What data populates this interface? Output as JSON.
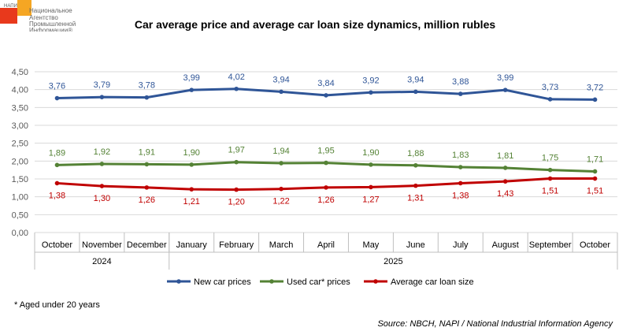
{
  "logo": {
    "badge": "НАПИ",
    "lines": [
      "Национальное",
      "Агентство",
      "Промышленной",
      "Информации®"
    ]
  },
  "chart_data": {
    "type": "line",
    "title": "Car average price and average car loan size dynamics, million rubles",
    "categories": [
      "October",
      "November",
      "December",
      "January",
      "February",
      "March",
      "April",
      "May",
      "June",
      "July",
      "August",
      "September",
      "October"
    ],
    "year_groups": [
      {
        "label": "2024",
        "count": 3
      },
      {
        "label": "2025",
        "count": 10
      }
    ],
    "ylim": [
      0,
      4.5
    ],
    "yticks": [
      "0,00",
      "0,50",
      "1,00",
      "1,50",
      "2,00",
      "2,50",
      "3,00",
      "3,50",
      "4,00",
      "4,50"
    ],
    "grid": true,
    "legend_position": "bottom",
    "series": [
      {
        "name": "New car prices",
        "color": "#2F5597",
        "label_pos": "above",
        "values": [
          3.76,
          3.79,
          3.78,
          3.99,
          4.02,
          3.94,
          3.84,
          3.92,
          3.94,
          3.88,
          3.99,
          3.73,
          3.72
        ]
      },
      {
        "name": "Used car* prices",
        "color": "#548235",
        "label_pos": "above",
        "values": [
          1.89,
          1.92,
          1.91,
          1.9,
          1.97,
          1.94,
          1.95,
          1.9,
          1.88,
          1.83,
          1.81,
          1.75,
          1.71
        ]
      },
      {
        "name": "Average car loan size",
        "color": "#C00000",
        "label_pos": "below",
        "values": [
          1.38,
          1.3,
          1.26,
          1.21,
          1.2,
          1.22,
          1.26,
          1.27,
          1.31,
          1.38,
          1.43,
          1.51,
          1.51
        ]
      }
    ]
  },
  "footnote": "* Aged under 20 years",
  "source": "Source: NBCH, NAPI / National Industrial Information Agency"
}
